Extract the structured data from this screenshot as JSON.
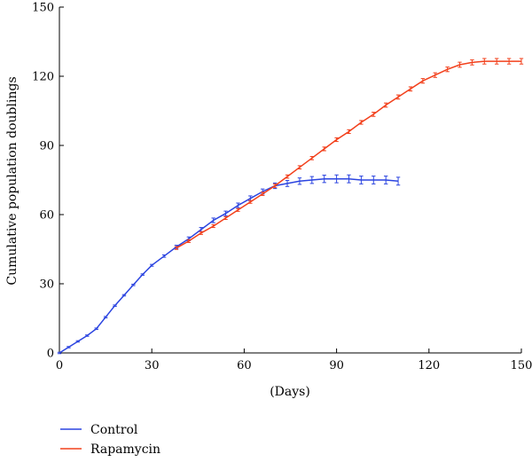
{
  "chart_data": {
    "type": "line",
    "title": "",
    "xlabel": "(Days)",
    "ylabel": "Cumulative population doublings",
    "xlim": [
      0,
      150
    ],
    "ylim": [
      0,
      150
    ],
    "xticks": [
      0,
      30,
      60,
      90,
      120,
      150
    ],
    "yticks": [
      0,
      30,
      60,
      90,
      120,
      150
    ],
    "grid": false,
    "legend_position": "bottom-left",
    "series": [
      {
        "name": "Control",
        "color": "#2b44e0",
        "x": [
          0,
          3,
          6,
          9,
          12,
          15,
          18,
          21,
          24,
          27,
          30,
          34,
          38,
          42,
          46,
          50,
          54,
          58,
          62,
          66,
          70,
          74,
          78,
          82,
          86,
          90,
          94,
          98,
          102,
          106,
          110
        ],
        "y": [
          0,
          2.5,
          5,
          7.5,
          10.5,
          15.5,
          20.5,
          25,
          29.5,
          34,
          38,
          42,
          46,
          49.5,
          53.5,
          57.5,
          60.5,
          64,
          67,
          70,
          72.5,
          73.5,
          74.5,
          75,
          75.5,
          75.5,
          75.5,
          75,
          75,
          75,
          74.5
        ],
        "err": [
          0.3,
          0.3,
          0.3,
          0.3,
          0.3,
          0.3,
          0.3,
          0.3,
          0.3,
          0.3,
          0.4,
          0.5,
          0.7,
          0.8,
          0.9,
          1.0,
          1.0,
          1.0,
          1.1,
          1.1,
          1.2,
          1.3,
          1.4,
          1.5,
          1.6,
          1.7,
          1.7,
          1.7,
          1.7,
          1.7,
          1.7
        ]
      },
      {
        "name": "Rapamycin",
        "color": "#f2401c",
        "x": [
          38,
          42,
          46,
          50,
          54,
          58,
          62,
          66,
          70,
          74,
          78,
          82,
          86,
          90,
          94,
          98,
          102,
          106,
          110,
          114,
          118,
          122,
          126,
          130,
          134,
          138,
          142,
          146,
          150
        ],
        "y": [
          45.5,
          48.5,
          52,
          55,
          58.5,
          62,
          65.5,
          69,
          72.5,
          76.5,
          80.5,
          84.5,
          88.5,
          92.5,
          96,
          100,
          103.5,
          107.5,
          111,
          114.5,
          118,
          120.5,
          123,
          125,
          126,
          126.5,
          126.5,
          126.5,
          126.5
        ],
        "err": [
          0.6,
          0.6,
          0.6,
          0.6,
          0.6,
          0.6,
          0.6,
          0.7,
          0.7,
          0.7,
          0.7,
          0.7,
          0.8,
          0.8,
          0.8,
          0.8,
          0.9,
          0.9,
          0.9,
          0.9,
          1.0,
          1.0,
          1.0,
          1.1,
          1.1,
          1.2,
          1.2,
          1.2,
          1.2
        ]
      }
    ]
  }
}
